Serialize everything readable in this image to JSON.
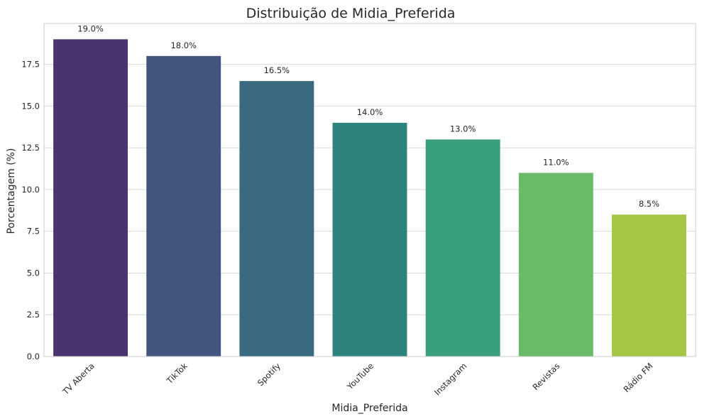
{
  "chart_data": {
    "type": "bar",
    "title": "Distribuição de Midia_Preferida",
    "xlabel": "Midia_Preferida",
    "ylabel": "Porcentagem (%)",
    "categories": [
      "TV Aberta",
      "TikTok",
      "Spotify",
      "YouTube",
      "Instagram",
      "Revistas",
      "Rádio FM"
    ],
    "values": [
      19.0,
      18.0,
      16.5,
      14.0,
      13.0,
      11.0,
      8.5
    ],
    "value_labels": [
      "19.0%",
      "18.0%",
      "16.5%",
      "14.0%",
      "13.0%",
      "11.0%",
      "8.5%"
    ],
    "colors": [
      "#4a3470",
      "#43557f",
      "#3a6a80",
      "#2e847c",
      "#3a9f7b",
      "#6aba6a",
      "#a3c645"
    ],
    "ylim": [
      0,
      19.95
    ],
    "yticks": [
      0.0,
      2.5,
      5.0,
      7.5,
      10.0,
      12.5,
      15.0,
      17.5
    ],
    "ytick_labels": [
      "0.0",
      "2.5",
      "5.0",
      "7.5",
      "10.0",
      "12.5",
      "15.0",
      "17.5"
    ],
    "grid": true,
    "grid_axis": "y"
  }
}
